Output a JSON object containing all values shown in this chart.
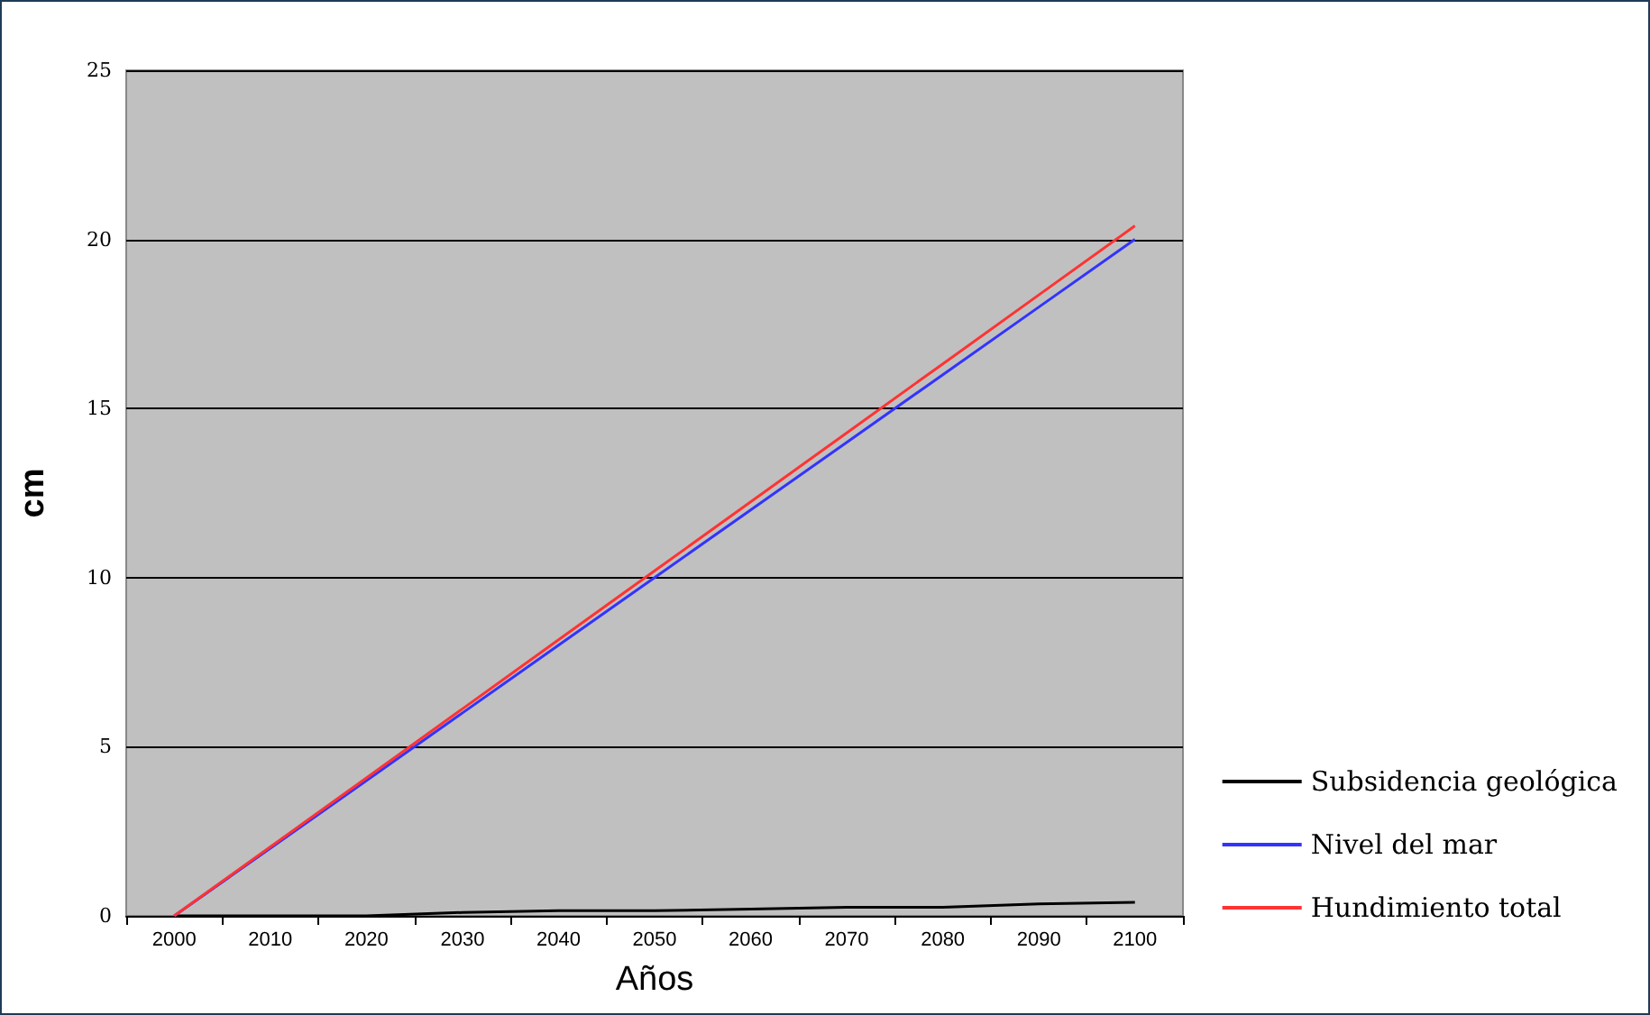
{
  "chart_data": {
    "type": "line",
    "xlabel": "Años",
    "ylabel": "cm",
    "categories": [
      "2000",
      "2010",
      "2020",
      "2030",
      "2040",
      "2050",
      "2060",
      "2070",
      "2080",
      "2090",
      "2100"
    ],
    "series": [
      {
        "name": "Subsidencia geológica",
        "color": "#000000",
        "values": [
          0,
          0,
          0,
          0.1,
          0.15,
          0.15,
          0.2,
          0.25,
          0.25,
          0.35,
          0.4
        ]
      },
      {
        "name": "Nivel del mar",
        "color": "#3333ff",
        "values": [
          0,
          2,
          4,
          6,
          8,
          10,
          12,
          14,
          16,
          18,
          20
        ]
      },
      {
        "name": "Hundimiento total",
        "color": "#ff3333",
        "values": [
          0,
          2.04,
          4.08,
          6.12,
          8.16,
          10.2,
          12.24,
          14.28,
          16.32,
          18.36,
          20.4
        ]
      }
    ],
    "ylim": [
      0,
      25
    ],
    "yticks": [
      0,
      5,
      10,
      15,
      20,
      25
    ],
    "grid": "y",
    "legend": "right",
    "marker": "none",
    "line_style": "solid"
  }
}
